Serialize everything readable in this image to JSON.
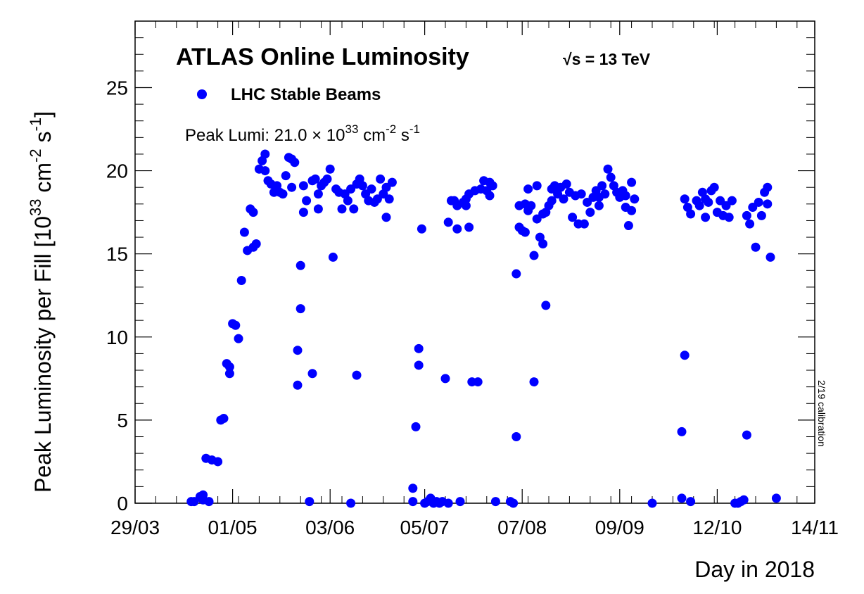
{
  "chart_data": {
    "type": "scatter",
    "title": "ATLAS Online Luminosity",
    "energy_label": "√s = 13 TeV",
    "legend": {
      "entry": "LHC Stable Beams",
      "color": "#0000ff",
      "placement": "top-left"
    },
    "annotation": {
      "prefix": "Peak Lumi: 21.0 × 10",
      "exp1": "33",
      "mid": " cm",
      "exp2": "-2",
      "mid2": " s",
      "exp3": "-1"
    },
    "side_note": "2/19 calibration",
    "xlabel": "Day in 2018",
    "ylabel": {
      "prefix": "Peak Luminosity per Fill [10",
      "exp1": "33",
      "mid": " cm",
      "exp2": "-2",
      "mid2": " s",
      "exp3": "-1",
      "suffix": "]"
    },
    "xlim": [
      "2018-03-29",
      "2018-11-14"
    ],
    "ylim": [
      0,
      29
    ],
    "x_ticks": [
      {
        "date": "2018-03-29",
        "label": "29/03"
      },
      {
        "date": "2018-05-01",
        "label": "01/05"
      },
      {
        "date": "2018-06-03",
        "label": "03/06"
      },
      {
        "date": "2018-07-05",
        "label": "05/07"
      },
      {
        "date": "2018-08-07",
        "label": "07/08"
      },
      {
        "date": "2018-09-09",
        "label": "09/09"
      },
      {
        "date": "2018-10-12",
        "label": "12/10"
      },
      {
        "date": "2018-11-14",
        "label": "14/11"
      }
    ],
    "y_ticks": [
      0,
      5,
      10,
      15,
      20,
      25
    ],
    "series": [
      {
        "name": "LHC Stable Beams",
        "color": "#0000ff",
        "points": [
          [
            "2018-04-17",
            0.1
          ],
          [
            "2018-04-18",
            0.1
          ],
          [
            "2018-04-20",
            0.4
          ],
          [
            "2018-04-21",
            0.2
          ],
          [
            "2018-04-21",
            0.5
          ],
          [
            "2018-04-22",
            2.7
          ],
          [
            "2018-04-23",
            0.1
          ],
          [
            "2018-04-24",
            2.6
          ],
          [
            "2018-04-26",
            2.5
          ],
          [
            "2018-04-27",
            5.0
          ],
          [
            "2018-04-28",
            5.1
          ],
          [
            "2018-04-29",
            8.4
          ],
          [
            "2018-04-30",
            8.2
          ],
          [
            "2018-04-30",
            7.8
          ],
          [
            "2018-05-01",
            10.8
          ],
          [
            "2018-05-02",
            10.7
          ],
          [
            "2018-05-03",
            9.9
          ],
          [
            "2018-05-04",
            13.4
          ],
          [
            "2018-05-05",
            16.3
          ],
          [
            "2018-05-06",
            15.2
          ],
          [
            "2018-05-07",
            17.7
          ],
          [
            "2018-05-08",
            17.5
          ],
          [
            "2018-05-08",
            15.4
          ],
          [
            "2018-05-09",
            15.6
          ],
          [
            "2018-05-10",
            20.1
          ],
          [
            "2018-05-11",
            20.6
          ],
          [
            "2018-05-12",
            21.0
          ],
          [
            "2018-05-12",
            20.0
          ],
          [
            "2018-05-13",
            19.4
          ],
          [
            "2018-05-14",
            19.2
          ],
          [
            "2018-05-15",
            18.7
          ],
          [
            "2018-05-16",
            19.1
          ],
          [
            "2018-05-17",
            18.7
          ],
          [
            "2018-05-18",
            18.6
          ],
          [
            "2018-05-19",
            19.7
          ],
          [
            "2018-05-20",
            20.8
          ],
          [
            "2018-05-21",
            20.7
          ],
          [
            "2018-05-21",
            19.0
          ],
          [
            "2018-05-22",
            20.5
          ],
          [
            "2018-05-23",
            7.1
          ],
          [
            "2018-05-23",
            9.2
          ],
          [
            "2018-05-24",
            14.3
          ],
          [
            "2018-05-24",
            11.7
          ],
          [
            "2018-05-25",
            17.5
          ],
          [
            "2018-05-25",
            19.1
          ],
          [
            "2018-05-26",
            18.2
          ],
          [
            "2018-05-27",
            0.1
          ],
          [
            "2018-05-28",
            19.4
          ],
          [
            "2018-05-28",
            7.8
          ],
          [
            "2018-05-29",
            19.5
          ],
          [
            "2018-05-30",
            18.6
          ],
          [
            "2018-05-30",
            17.7
          ],
          [
            "2018-05-31",
            19.1
          ],
          [
            "2018-06-01",
            19.3
          ],
          [
            "2018-06-02",
            19.5
          ],
          [
            "2018-06-03",
            20.1
          ],
          [
            "2018-06-04",
            14.8
          ],
          [
            "2018-06-05",
            18.9
          ],
          [
            "2018-06-06",
            18.7
          ],
          [
            "2018-06-07",
            17.7
          ],
          [
            "2018-06-08",
            18.6
          ],
          [
            "2018-06-09",
            18.2
          ],
          [
            "2018-06-10",
            0.0
          ],
          [
            "2018-06-10",
            18.9
          ],
          [
            "2018-06-11",
            17.7
          ],
          [
            "2018-06-12",
            7.7
          ],
          [
            "2018-06-12",
            19.2
          ],
          [
            "2018-06-13",
            19.5
          ],
          [
            "2018-06-14",
            19.1
          ],
          [
            "2018-06-15",
            18.6
          ],
          [
            "2018-06-16",
            18.2
          ],
          [
            "2018-06-17",
            18.9
          ],
          [
            "2018-06-18",
            18.1
          ],
          [
            "2018-06-19",
            18.3
          ],
          [
            "2018-06-20",
            19.5
          ],
          [
            "2018-06-21",
            18.6
          ],
          [
            "2018-06-22",
            19.0
          ],
          [
            "2018-06-22",
            17.2
          ],
          [
            "2018-06-23",
            18.3
          ],
          [
            "2018-06-24",
            19.3
          ],
          [
            "2018-07-01",
            0.1
          ],
          [
            "2018-07-01",
            0.9
          ],
          [
            "2018-07-02",
            4.6
          ],
          [
            "2018-07-03",
            8.3
          ],
          [
            "2018-07-03",
            9.3
          ],
          [
            "2018-07-04",
            16.5
          ],
          [
            "2018-07-05",
            0.0
          ],
          [
            "2018-07-06",
            0.1
          ],
          [
            "2018-07-07",
            0.3
          ],
          [
            "2018-07-08",
            0.0
          ],
          [
            "2018-07-09",
            0.1
          ],
          [
            "2018-07-10",
            0.0
          ],
          [
            "2018-07-11",
            0.1
          ],
          [
            "2018-07-12",
            7.5
          ],
          [
            "2018-07-13",
            0.0
          ],
          [
            "2018-07-13",
            16.9
          ],
          [
            "2018-07-14",
            18.2
          ],
          [
            "2018-07-15",
            18.2
          ],
          [
            "2018-07-16",
            16.5
          ],
          [
            "2018-07-16",
            17.9
          ],
          [
            "2018-07-17",
            0.1
          ],
          [
            "2018-07-18",
            18.1
          ],
          [
            "2018-07-19",
            17.9
          ],
          [
            "2018-07-19",
            18.3
          ],
          [
            "2018-07-20",
            16.6
          ],
          [
            "2018-07-20",
            18.6
          ],
          [
            "2018-07-21",
            7.3
          ],
          [
            "2018-07-22",
            18.8
          ],
          [
            "2018-07-23",
            7.3
          ],
          [
            "2018-07-24",
            18.9
          ],
          [
            "2018-07-25",
            19.4
          ],
          [
            "2018-07-26",
            18.8
          ],
          [
            "2018-07-27",
            18.5
          ],
          [
            "2018-07-27",
            19.3
          ],
          [
            "2018-07-28",
            19.1
          ],
          [
            "2018-07-29",
            0.1
          ],
          [
            "2018-08-03",
            0.1
          ],
          [
            "2018-08-04",
            0.0
          ],
          [
            "2018-08-05",
            4.0
          ],
          [
            "2018-08-05",
            13.8
          ],
          [
            "2018-08-06",
            16.6
          ],
          [
            "2018-08-06",
            17.9
          ],
          [
            "2018-08-07",
            16.4
          ],
          [
            "2018-08-08",
            16.3
          ],
          [
            "2018-08-08",
            18.0
          ],
          [
            "2018-08-09",
            17.6
          ],
          [
            "2018-08-09",
            18.9
          ],
          [
            "2018-08-10",
            17.9
          ],
          [
            "2018-08-11",
            14.9
          ],
          [
            "2018-08-11",
            7.3
          ],
          [
            "2018-08-12",
            19.1
          ],
          [
            "2018-08-12",
            17.1
          ],
          [
            "2018-08-13",
            16.0
          ],
          [
            "2018-08-14",
            17.4
          ],
          [
            "2018-08-14",
            15.6
          ],
          [
            "2018-08-15",
            17.5
          ],
          [
            "2018-08-15",
            11.9
          ],
          [
            "2018-08-16",
            17.9
          ],
          [
            "2018-08-17",
            18.9
          ],
          [
            "2018-08-17",
            18.2
          ],
          [
            "2018-08-18",
            19.1
          ],
          [
            "2018-08-19",
            18.6
          ],
          [
            "2018-08-20",
            19.0
          ],
          [
            "2018-08-21",
            18.3
          ],
          [
            "2018-08-22",
            19.2
          ],
          [
            "2018-08-23",
            18.7
          ],
          [
            "2018-08-24",
            17.2
          ],
          [
            "2018-08-25",
            18.5
          ],
          [
            "2018-08-26",
            16.8
          ],
          [
            "2018-08-27",
            18.6
          ],
          [
            "2018-08-28",
            16.8
          ],
          [
            "2018-08-29",
            18.1
          ],
          [
            "2018-08-30",
            17.5
          ],
          [
            "2018-08-31",
            18.4
          ],
          [
            "2018-09-01",
            18.8
          ],
          [
            "2018-09-02",
            17.9
          ],
          [
            "2018-09-02",
            18.4
          ],
          [
            "2018-09-03",
            19.1
          ],
          [
            "2018-09-04",
            18.6
          ],
          [
            "2018-09-05",
            20.1
          ],
          [
            "2018-09-06",
            19.6
          ],
          [
            "2018-09-07",
            19.1
          ],
          [
            "2018-09-08",
            18.7
          ],
          [
            "2018-09-09",
            18.4
          ],
          [
            "2018-09-10",
            18.8
          ],
          [
            "2018-09-11",
            17.8
          ],
          [
            "2018-09-11",
            18.5
          ],
          [
            "2018-09-12",
            16.7
          ],
          [
            "2018-09-13",
            17.6
          ],
          [
            "2018-09-13",
            19.3
          ],
          [
            "2018-09-14",
            18.3
          ],
          [
            "2018-09-20",
            0.0
          ],
          [
            "2018-09-30",
            0.3
          ],
          [
            "2018-09-30",
            4.3
          ],
          [
            "2018-10-01",
            8.9
          ],
          [
            "2018-10-01",
            18.3
          ],
          [
            "2018-10-02",
            17.8
          ],
          [
            "2018-10-03",
            17.4
          ],
          [
            "2018-10-03",
            0.1
          ],
          [
            "2018-10-05",
            18.2
          ],
          [
            "2018-10-06",
            17.9
          ],
          [
            "2018-10-07",
            18.7
          ],
          [
            "2018-10-08",
            17.2
          ],
          [
            "2018-10-08",
            18.3
          ],
          [
            "2018-10-09",
            18.1
          ],
          [
            "2018-10-10",
            18.8
          ],
          [
            "2018-10-11",
            19.0
          ],
          [
            "2018-10-12",
            17.5
          ],
          [
            "2018-10-13",
            18.2
          ],
          [
            "2018-10-14",
            17.3
          ],
          [
            "2018-10-15",
            17.9
          ],
          [
            "2018-10-16",
            17.2
          ],
          [
            "2018-10-17",
            18.2
          ],
          [
            "2018-10-18",
            0.0
          ],
          [
            "2018-10-19",
            0.0
          ],
          [
            "2018-10-20",
            0.1
          ],
          [
            "2018-10-21",
            0.2
          ],
          [
            "2018-10-22",
            4.1
          ],
          [
            "2018-10-22",
            17.3
          ],
          [
            "2018-10-23",
            16.8
          ],
          [
            "2018-10-24",
            17.8
          ],
          [
            "2018-10-25",
            15.4
          ],
          [
            "2018-10-26",
            18.1
          ],
          [
            "2018-10-27",
            17.3
          ],
          [
            "2018-10-28",
            18.7
          ],
          [
            "2018-10-29",
            18.0
          ],
          [
            "2018-10-30",
            14.8
          ],
          [
            "2018-10-29",
            19.0
          ],
          [
            "2018-11-01",
            0.3
          ]
        ]
      }
    ]
  }
}
